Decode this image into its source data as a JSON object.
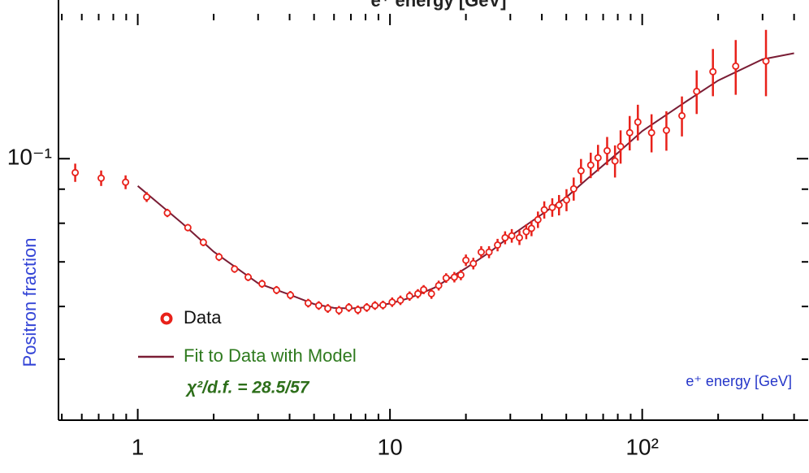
{
  "chart_data": {
    "type": "scatter",
    "x2label": "e⁺ energy [GeV]",
    "xlabel": "e⁺ energy [GeV]",
    "ylabel": "Positron fraction",
    "annotation": "χ²/d.f. = 28.5/57",
    "xscale": "log",
    "yscale": "log",
    "xlim": [
      0.485,
      455
    ],
    "ylim": [
      0.0405,
      0.165
    ],
    "xticks": [
      1,
      10,
      {
        "value": 100,
        "label": "10²"
      }
    ],
    "xminorticks": [
      0.5,
      0.6,
      0.7,
      0.8,
      0.9,
      2,
      3,
      4,
      5,
      6,
      7,
      8,
      9,
      20,
      30,
      40,
      50,
      60,
      70,
      80,
      90,
      200,
      300,
      400
    ],
    "yticks": [
      {
        "value": 0.1,
        "label": "10⁻¹"
      }
    ],
    "yminorticks": [
      0.05,
      0.06,
      0.07,
      0.08,
      0.09
    ],
    "legend": "lower left",
    "series": [
      {
        "name": "Data",
        "type": "scatter",
        "color": "#e8211a",
        "x": [
          0.565,
          0.716,
          0.895,
          1.085,
          1.31,
          1.58,
          1.82,
          2.1,
          2.42,
          2.74,
          3.11,
          3.55,
          4.03,
          4.74,
          5.22,
          5.67,
          6.28,
          6.87,
          7.46,
          8.09,
          8.72,
          9.38,
          10.2,
          11.0,
          11.96,
          12.9,
          13.6,
          14.6,
          15.6,
          16.7,
          18.0,
          19.1,
          20.0,
          21.4,
          23.0,
          24.7,
          26.7,
          28.6,
          30.4,
          32.6,
          34.7,
          36.4,
          38.6,
          40.9,
          44.0,
          46.8,
          50.1,
          53.5,
          57.2,
          62.5,
          66.8,
          72.6,
          78.0,
          82.1,
          89.2,
          96.1,
          108.9,
          124.7,
          143.7,
          164.4,
          190.7,
          234.8,
          309.5
        ],
        "values": [
          0.0953,
          0.0935,
          0.0922,
          0.0876,
          0.0829,
          0.0788,
          0.0749,
          0.0712,
          0.0683,
          0.0664,
          0.0649,
          0.0635,
          0.0624,
          0.0607,
          0.0602,
          0.0596,
          0.0592,
          0.0598,
          0.0593,
          0.0598,
          0.0602,
          0.0603,
          0.0609,
          0.0613,
          0.0622,
          0.0627,
          0.0636,
          0.0627,
          0.0645,
          0.0662,
          0.0664,
          0.0669,
          0.0704,
          0.0696,
          0.0724,
          0.0724,
          0.0742,
          0.0761,
          0.0766,
          0.0761,
          0.0777,
          0.0786,
          0.081,
          0.0838,
          0.0845,
          0.0852,
          0.0867,
          0.0901,
          0.0959,
          0.0978,
          0.1003,
          0.1028,
          0.0992,
          0.1043,
          0.1094,
          0.1135,
          0.1094,
          0.1103,
          0.116,
          0.1262,
          0.1351,
          0.1377,
          0.1401
        ],
        "errors": [
          0.003,
          0.0025,
          0.0022,
          0.0015,
          0.0012,
          0.001,
          0.001,
          0.001,
          0.0009,
          0.0009,
          0.0009,
          0.0009,
          0.0009,
          0.0009,
          0.0009,
          0.0009,
          0.0009,
          0.0009,
          0.0009,
          0.0009,
          0.0009,
          0.0009,
          0.001,
          0.001,
          0.001,
          0.001,
          0.001,
          0.0011,
          0.0011,
          0.0011,
          0.0012,
          0.0012,
          0.0014,
          0.0014,
          0.0015,
          0.0015,
          0.0016,
          0.0017,
          0.0018,
          0.0019,
          0.002,
          0.0021,
          0.0023,
          0.0025,
          0.0027,
          0.003,
          0.0033,
          0.0036,
          0.004,
          0.0043,
          0.0046,
          0.005,
          0.0055,
          0.006,
          0.0065,
          0.007,
          0.0072,
          0.0075,
          0.008,
          0.0095,
          0.011,
          0.013,
          0.016
        ]
      },
      {
        "name": "Fit to Data with Model",
        "type": "line",
        "color": "#7a1d35",
        "x": [
          1.0,
          1.5,
          2,
          3,
          4,
          5,
          6,
          7,
          8,
          10,
          12,
          15,
          20,
          25,
          30,
          40,
          50,
          60,
          80,
          100,
          150,
          200,
          300,
          400
        ],
        "values": [
          0.091,
          0.08,
          0.0725,
          0.065,
          0.0625,
          0.0605,
          0.0597,
          0.0596,
          0.0598,
          0.0606,
          0.0618,
          0.064,
          0.0685,
          0.0725,
          0.0765,
          0.0825,
          0.0875,
          0.093,
          0.102,
          0.11,
          0.122,
          0.131,
          0.141,
          0.144
        ]
      }
    ]
  }
}
